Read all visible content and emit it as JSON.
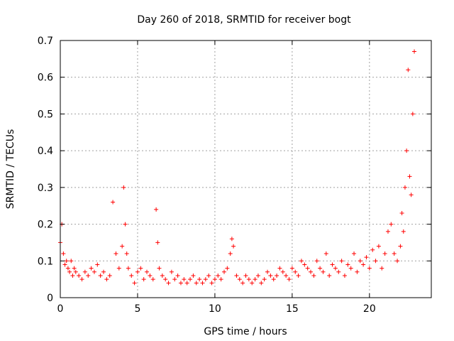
{
  "chart_data": {
    "type": "scatter",
    "title": "Day 260 of 2018, SRMTID for receiver bogt",
    "xlabel": "GPS time / hours",
    "ylabel": "SRMTID / TECUs",
    "xlim": [
      0,
      24
    ],
    "ylim": [
      0,
      0.7
    ],
    "grid": true,
    "marker": "+",
    "color": "#ff0000",
    "x_ticks": [
      0,
      5,
      10,
      15,
      20
    ],
    "y_ticks": [
      0,
      0.1,
      0.2,
      0.3,
      0.4,
      0.5,
      0.6,
      0.7
    ],
    "x_tick_labels": [
      "0",
      "5",
      "10",
      "15",
      "20"
    ],
    "y_tick_labels": [
      "0",
      "0.1",
      "0.2",
      "0.3",
      "0.4",
      "0.5",
      "0.6",
      "0.7"
    ],
    "series": [
      {
        "name": "SRMTID",
        "x": [
          0.0,
          0.1,
          0.2,
          0.3,
          0.4,
          0.5,
          0.6,
          0.7,
          0.8,
          0.9,
          1.0,
          1.2,
          1.4,
          1.6,
          1.8,
          2.0,
          2.2,
          2.4,
          2.6,
          2.8,
          3.0,
          3.2,
          3.4,
          3.6,
          3.8,
          4.0,
          4.1,
          4.2,
          4.3,
          4.4,
          4.6,
          4.8,
          5.0,
          5.2,
          5.4,
          5.6,
          5.8,
          6.0,
          6.2,
          6.3,
          6.4,
          6.6,
          6.8,
          7.0,
          7.2,
          7.4,
          7.6,
          7.8,
          8.0,
          8.2,
          8.4,
          8.6,
          8.8,
          9.0,
          9.2,
          9.4,
          9.6,
          9.8,
          10.0,
          10.2,
          10.4,
          10.6,
          10.8,
          11.0,
          11.1,
          11.2,
          11.4,
          11.6,
          11.8,
          12.0,
          12.2,
          12.4,
          12.6,
          12.8,
          13.0,
          13.2,
          13.4,
          13.6,
          13.8,
          14.0,
          14.2,
          14.4,
          14.6,
          14.8,
          15.0,
          15.2,
          15.4,
          15.6,
          15.8,
          16.0,
          16.2,
          16.4,
          16.6,
          16.8,
          17.0,
          17.2,
          17.4,
          17.6,
          17.8,
          18.0,
          18.2,
          18.4,
          18.6,
          18.8,
          19.0,
          19.2,
          19.4,
          19.6,
          19.8,
          20.0,
          20.2,
          20.4,
          20.6,
          20.8,
          21.0,
          21.2,
          21.4,
          21.6,
          21.8,
          22.0,
          22.1,
          22.2,
          22.3,
          22.4,
          22.5,
          22.6,
          22.7,
          22.8,
          22.9
        ],
        "y": [
          0.15,
          0.2,
          0.12,
          0.09,
          0.1,
          0.08,
          0.07,
          0.1,
          0.06,
          0.08,
          0.07,
          0.06,
          0.05,
          0.07,
          0.06,
          0.08,
          0.07,
          0.09,
          0.06,
          0.07,
          0.05,
          0.06,
          0.26,
          0.12,
          0.08,
          0.14,
          0.3,
          0.2,
          0.12,
          0.08,
          0.06,
          0.04,
          0.07,
          0.08,
          0.05,
          0.07,
          0.06,
          0.05,
          0.24,
          0.15,
          0.08,
          0.06,
          0.05,
          0.04,
          0.07,
          0.05,
          0.06,
          0.04,
          0.05,
          0.04,
          0.05,
          0.06,
          0.04,
          0.05,
          0.04,
          0.05,
          0.06,
          0.04,
          0.05,
          0.06,
          0.05,
          0.07,
          0.08,
          0.12,
          0.16,
          0.14,
          0.06,
          0.05,
          0.04,
          0.06,
          0.05,
          0.04,
          0.05,
          0.06,
          0.04,
          0.05,
          0.07,
          0.06,
          0.05,
          0.06,
          0.08,
          0.07,
          0.06,
          0.05,
          0.08,
          0.07,
          0.06,
          0.1,
          0.09,
          0.08,
          0.07,
          0.06,
          0.1,
          0.08,
          0.07,
          0.12,
          0.06,
          0.09,
          0.08,
          0.07,
          0.1,
          0.06,
          0.09,
          0.08,
          0.12,
          0.07,
          0.1,
          0.09,
          0.11,
          0.08,
          0.13,
          0.1,
          0.14,
          0.08,
          0.12,
          0.18,
          0.2,
          0.12,
          0.1,
          0.14,
          0.23,
          0.18,
          0.3,
          0.4,
          0.62,
          0.33,
          0.28,
          0.5,
          0.67
        ]
      }
    ]
  }
}
